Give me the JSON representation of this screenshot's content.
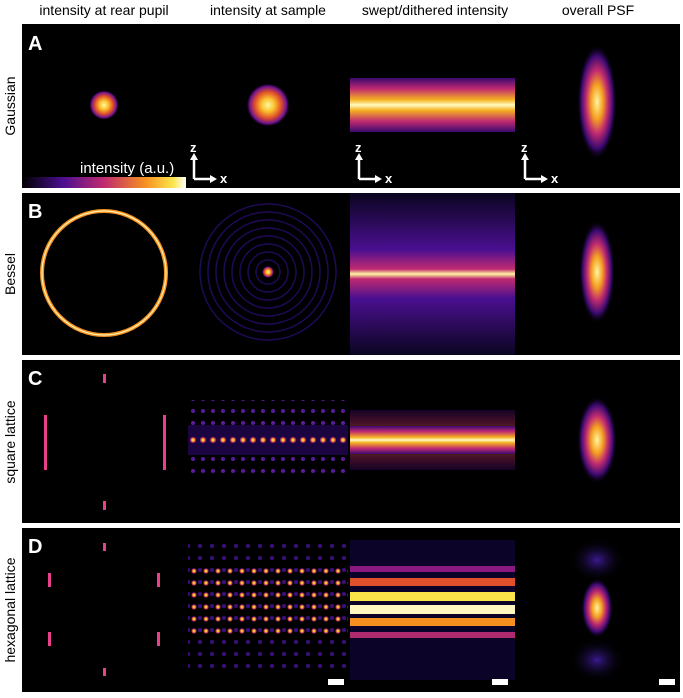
{
  "headers": [
    "intensity at rear pupil",
    "intensity at sample",
    "swept/dithered intensity",
    "overall PSF"
  ],
  "rows": [
    {
      "letter": "A",
      "label": "Gaussian"
    },
    {
      "letter": "B",
      "label": "Bessel"
    },
    {
      "letter": "C",
      "label": "square lattice"
    },
    {
      "letter": "D",
      "label": "hexagonal lattice"
    }
  ],
  "colorbar": {
    "label": "intensity (a.u.)"
  },
  "axes": {
    "z": "z",
    "x": "x"
  }
}
